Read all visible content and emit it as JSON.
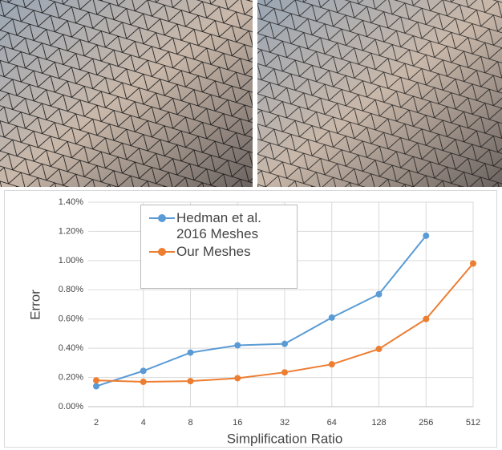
{
  "chart_data": {
    "type": "line",
    "x_label": "Simplification Ratio",
    "y_label": "Error",
    "categories": [
      "2",
      "4",
      "8",
      "16",
      "32",
      "64",
      "128",
      "256",
      "512"
    ],
    "series": [
      {
        "name": "Hedman et al. 2016 Meshes",
        "color": "#5b9bd5",
        "values": [
          0.14,
          0.245,
          0.37,
          0.42,
          0.43,
          0.61,
          0.77,
          1.17,
          null
        ]
      },
      {
        "name": "Our Meshes",
        "color": "#ed7d31",
        "values": [
          0.18,
          0.17,
          0.175,
          0.195,
          0.235,
          0.29,
          0.395,
          0.6,
          0.98
        ]
      }
    ],
    "ylim": [
      0,
      1.4
    ],
    "yticks": [
      {
        "value": 0,
        "label": "0.00%"
      },
      {
        "value": 0.2,
        "label": "0.20%"
      },
      {
        "value": 0.4,
        "label": "0.40%"
      },
      {
        "value": 0.6,
        "label": "0.60%"
      },
      {
        "value": 0.8,
        "label": "0.80%"
      },
      {
        "value": 1.0,
        "label": "1.00%"
      },
      {
        "value": 1.2,
        "label": "1.20%"
      },
      {
        "value": 1.4,
        "label": "1.40%"
      }
    ],
    "grid": true
  }
}
